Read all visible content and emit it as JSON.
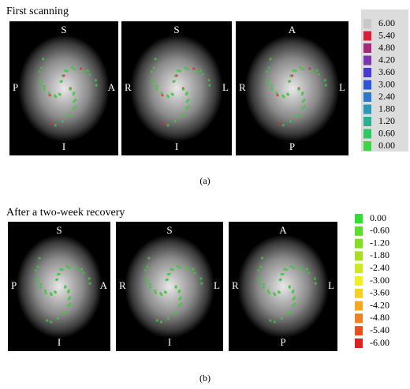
{
  "panels": [
    {
      "title": "First scanning",
      "caption": "(a)",
      "images": [
        {
          "top": "S",
          "bottom": "I",
          "left": "P",
          "right": "A"
        },
        {
          "top": "S",
          "bottom": "I",
          "left": "R",
          "right": "L"
        },
        {
          "top": "A",
          "bottom": "P",
          "left": "R",
          "right": "L"
        }
      ],
      "colorbar": [
        {
          "label": "6.00",
          "color": "#c8c8c8"
        },
        {
          "label": "5.40",
          "color": "#d8203a"
        },
        {
          "label": "4.80",
          "color": "#a8287c"
        },
        {
          "label": "4.20",
          "color": "#7a35b0"
        },
        {
          "label": "3.60",
          "color": "#4a3ad0"
        },
        {
          "label": "3.00",
          "color": "#2d55d8"
        },
        {
          "label": "2.40",
          "color": "#2a78d0"
        },
        {
          "label": "1.80",
          "color": "#2a98b8"
        },
        {
          "label": "1.20",
          "color": "#28b090"
        },
        {
          "label": "0.60",
          "color": "#30c860"
        },
        {
          "label": "0.00",
          "color": "#38d840"
        }
      ]
    },
    {
      "title": "After a two-week recovery",
      "caption": "(b)",
      "images": [
        {
          "top": "S",
          "bottom": "I",
          "left": "P",
          "right": "A"
        },
        {
          "top": "S",
          "bottom": "I",
          "left": "R",
          "right": "L"
        },
        {
          "top": "A",
          "bottom": "P",
          "left": "R",
          "right": "L"
        }
      ],
      "colorbar": [
        {
          "label": "0.00",
          "color": "#30e030"
        },
        {
          "label": "-0.60",
          "color": "#58e028"
        },
        {
          "label": "-1.20",
          "color": "#80e020"
        },
        {
          "label": "-1.80",
          "color": "#a8e020"
        },
        {
          "label": "-2.40",
          "color": "#d0e820"
        },
        {
          "label": "-3.00",
          "color": "#f0f020"
        },
        {
          "label": "-3.60",
          "color": "#f8d020"
        },
        {
          "label": "-4.20",
          "color": "#f8a820"
        },
        {
          "label": "-4.80",
          "color": "#f08020"
        },
        {
          "label": "-5.40",
          "color": "#e85020"
        },
        {
          "label": "-6.00",
          "color": "#e02020"
        }
      ]
    }
  ]
}
